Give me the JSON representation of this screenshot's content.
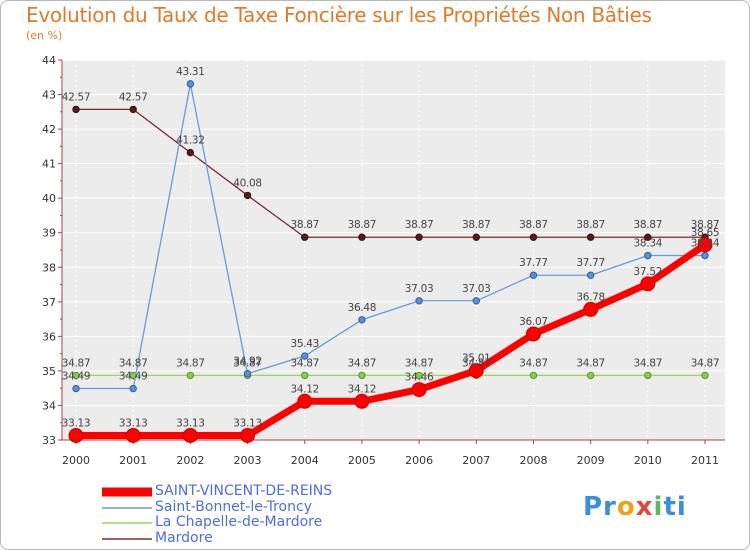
{
  "title": "Evolution du Taux de Taxe Foncière sur les Propriétés Non Bâties",
  "unit": "(en %)",
  "logo": {
    "parts": [
      "Pr",
      "o",
      "x",
      "i",
      "ti"
    ],
    "colors": [
      "#3a8fd6",
      "#f0a11b",
      "#e2483a",
      "#5cb85c",
      "#3a8fd6"
    ]
  },
  "chart_data": {
    "type": "line",
    "title": "Evolution du Taux de Taxe Foncière sur les Propriétés Non Bâties",
    "ylabel": "(en %)",
    "x": [
      "2000",
      "2001",
      "2002",
      "2003",
      "2004",
      "2005",
      "2006",
      "2007",
      "2008",
      "2009",
      "2010",
      "2011"
    ],
    "ylim": [
      33,
      44
    ],
    "yticks": [
      33,
      34,
      35,
      36,
      37,
      38,
      39,
      40,
      41,
      42,
      43,
      44
    ],
    "series": [
      {
        "name": "SAINT-VINCENT-DE-REINS",
        "color": "#ff0000",
        "values": [
          33.13,
          33.13,
          33.13,
          33.13,
          34.12,
          34.12,
          34.46,
          35.01,
          36.07,
          36.78,
          37.52,
          38.65
        ],
        "labels": [
          "33.13",
          "33.13",
          "33.13",
          "33.13",
          "34.12",
          "34.12",
          "34.46",
          "35.01",
          "36.07",
          "36.78",
          "37.52",
          "38.65"
        ]
      },
      {
        "name": "Saint-Bonnet-le-Troncy",
        "color": "#6a9bd8",
        "values": [
          34.49,
          34.49,
          43.31,
          34.92,
          35.43,
          36.48,
          37.03,
          37.03,
          37.77,
          37.77,
          38.34,
          38.34
        ],
        "labels": [
          "34.49",
          "34.49",
          "43.31",
          "34.92",
          "35.43",
          "36.48",
          "37.03",
          "37.03",
          "37.77",
          "37.77",
          "38.34",
          "38.34"
        ]
      },
      {
        "name": "La Chapelle-de-Mardore",
        "color": "#9ad45a",
        "values": [
          34.87,
          34.87,
          34.87,
          34.87,
          34.87,
          34.87,
          34.87,
          34.87,
          34.87,
          34.87,
          34.87,
          34.87
        ],
        "labels": [
          "34.87",
          "34.87",
          "34.87",
          "34.87",
          "34.87",
          "34.87",
          "34.87",
          "34.87",
          "34.87",
          "34.87",
          "34.87",
          "34.87"
        ]
      },
      {
        "name": "Mardore",
        "color": "#7a2e2e",
        "values": [
          42.57,
          42.57,
          41.32,
          40.08,
          38.87,
          38.87,
          38.87,
          38.87,
          38.87,
          38.87,
          38.87,
          38.87
        ],
        "labels": [
          "42.57",
          "42.57",
          "41.32",
          "40.08",
          "38.87",
          "38.87",
          "38.87",
          "38.87",
          "38.87",
          "38.87",
          "38.87",
          "38.87"
        ]
      }
    ]
  }
}
